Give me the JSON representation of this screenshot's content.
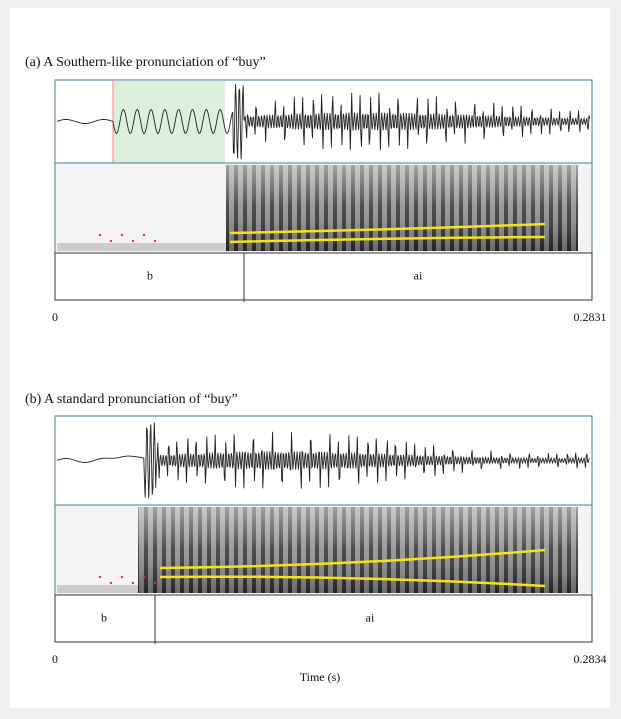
{
  "panels": [
    {
      "title": "(a) A Southern-like pronunciation of “buy”",
      "segments": [
        "b",
        "ai"
      ],
      "time_start": 0,
      "time_end": 0.2831
    },
    {
      "title": "(b) A standard pronunciation of “buy”",
      "segments": [
        "b",
        "ai"
      ],
      "time_start": 0,
      "time_end": 0.2834
    }
  ],
  "x_axis_label": "Time (s)"
}
